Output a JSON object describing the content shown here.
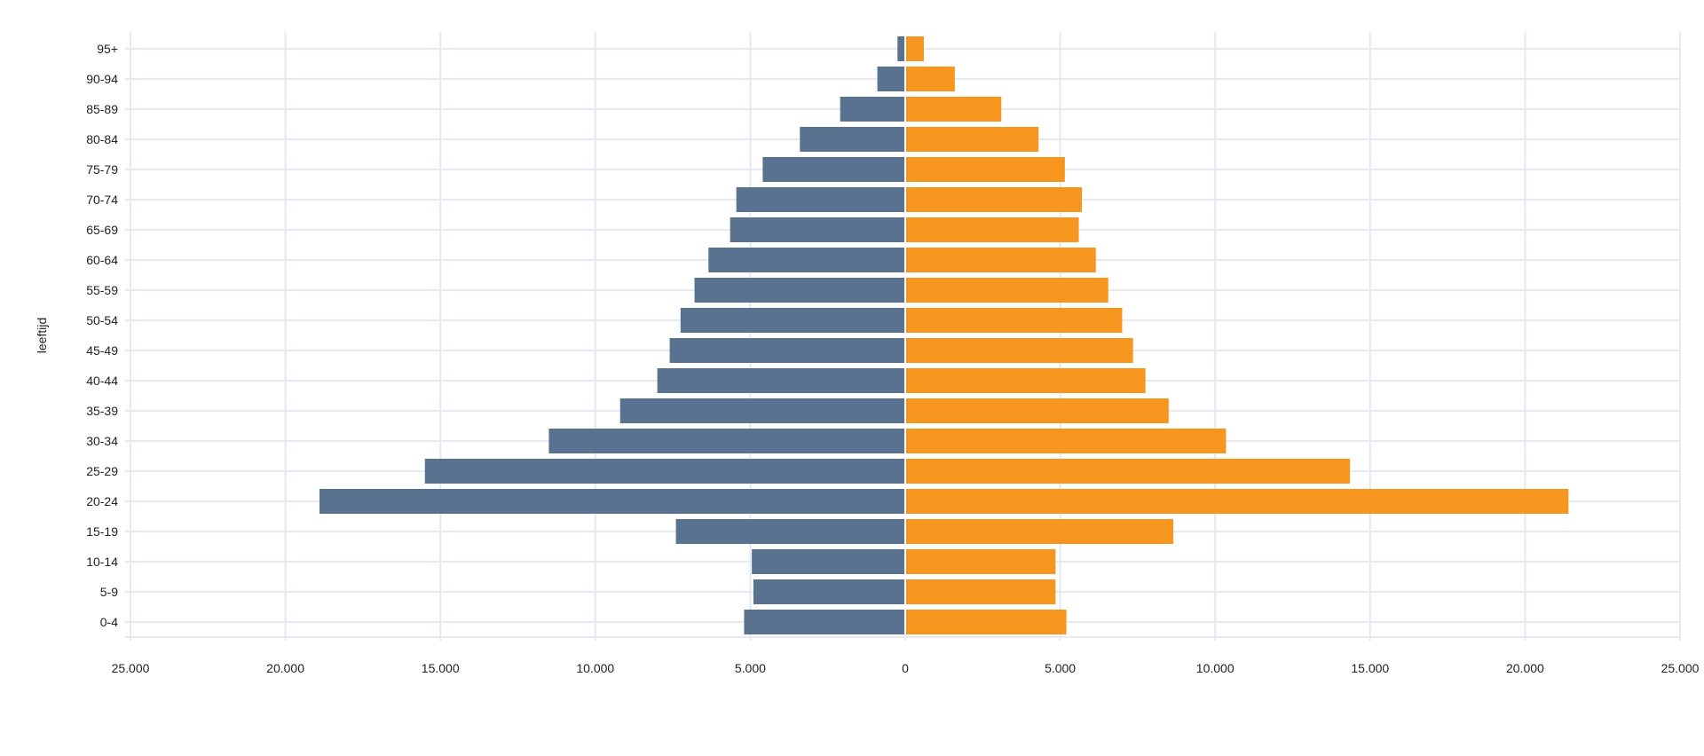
{
  "chart_data": {
    "type": "bar",
    "orientation": "horizontal",
    "layout": "population-pyramid",
    "title": "",
    "xlabel": "",
    "ylabel": "leeftijd",
    "xlim": [
      -25000,
      25000
    ],
    "x_ticks": [
      -25000,
      -20000,
      -15000,
      -10000,
      -5000,
      0,
      5000,
      10000,
      15000,
      20000,
      25000
    ],
    "x_tick_labels": [
      "25.000",
      "20.000",
      "15.000",
      "10.000",
      "5.000",
      "0",
      "5.000",
      "10.000",
      "15.000",
      "20.000",
      "25.000"
    ],
    "grid": true,
    "legend": "none",
    "categories": [
      "0-4",
      "5-9",
      "10-14",
      "15-19",
      "20-24",
      "25-29",
      "30-34",
      "35-39",
      "40-44",
      "45-49",
      "50-54",
      "55-59",
      "60-64",
      "65-69",
      "70-74",
      "75-79",
      "80-84",
      "85-89",
      "90-94",
      "95+"
    ],
    "series": [
      {
        "color": "#58728f",
        "side": "left",
        "values": [
          5200,
          4900,
          4950,
          7400,
          18900,
          15500,
          11500,
          9200,
          8000,
          7600,
          7250,
          6800,
          6350,
          5650,
          5450,
          4600,
          3400,
          2100,
          900,
          250
        ]
      },
      {
        "color": "#f7961f",
        "side": "right",
        "values": [
          5200,
          4850,
          4850,
          8650,
          21400,
          14350,
          10350,
          8500,
          7750,
          7350,
          7000,
          6550,
          6150,
          5600,
          5700,
          5150,
          4300,
          3100,
          1600,
          600
        ]
      }
    ],
    "colors": {
      "grid": "#e6e9f2",
      "text": "#222222"
    }
  }
}
